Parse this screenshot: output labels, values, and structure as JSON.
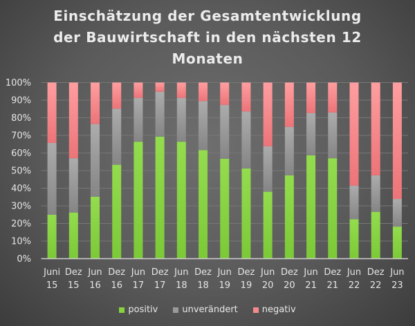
{
  "chart_data": {
    "type": "bar",
    "stacked": true,
    "title_lines": [
      "Einschätzung der Gesamtentwicklung",
      "der Bauwirtschaft in den nächsten 12",
      "Monaten"
    ],
    "categories": [
      [
        "Juni",
        "15"
      ],
      [
        "Dez",
        "15"
      ],
      [
        "Jun",
        "16"
      ],
      [
        "Dez",
        "16"
      ],
      [
        "Jun",
        "17"
      ],
      [
        "Dez",
        "17"
      ],
      [
        "Jun",
        "18"
      ],
      [
        "Dez",
        "18"
      ],
      [
        "Jun",
        "19"
      ],
      [
        "Dez",
        "19"
      ],
      [
        "Jun",
        "20"
      ],
      [
        "Dez",
        "20"
      ],
      [
        "Jun",
        "21"
      ],
      [
        "Dez",
        "21"
      ],
      [
        "Jun",
        "22"
      ],
      [
        "Dez",
        "22"
      ],
      [
        "Jun",
        "23"
      ]
    ],
    "series": [
      {
        "name": "positiv",
        "color": "#86d23f",
        "values": [
          24.9,
          26.2,
          35.1,
          53.3,
          66.4,
          69.3,
          66.4,
          61.6,
          56.7,
          51.2,
          38.0,
          47.3,
          58.7,
          57.0,
          22.4,
          26.6,
          18.2
        ]
      },
      {
        "name": "unverändert",
        "color": "#9a9a9a",
        "values": [
          40.8,
          30.8,
          41.3,
          31.9,
          24.9,
          25.5,
          24.9,
          27.9,
          30.6,
          32.4,
          25.8,
          27.5,
          24.0,
          26.0,
          19.1,
          20.7,
          15.7
        ]
      },
      {
        "name": "negativ",
        "color": "#f58a8d",
        "values": [
          34.3,
          43.0,
          23.6,
          14.8,
          8.7,
          5.2,
          8.7,
          10.5,
          12.7,
          16.4,
          36.2,
          25.2,
          17.3,
          17.0,
          58.5,
          52.7,
          66.1
        ]
      }
    ],
    "yticks": [
      "0%",
      "10%",
      "20%",
      "30%",
      "40%",
      "50%",
      "60%",
      "70%",
      "80%",
      "90%",
      "100%"
    ],
    "ylim": [
      0,
      100
    ],
    "grid": true,
    "legend": "bottom"
  }
}
